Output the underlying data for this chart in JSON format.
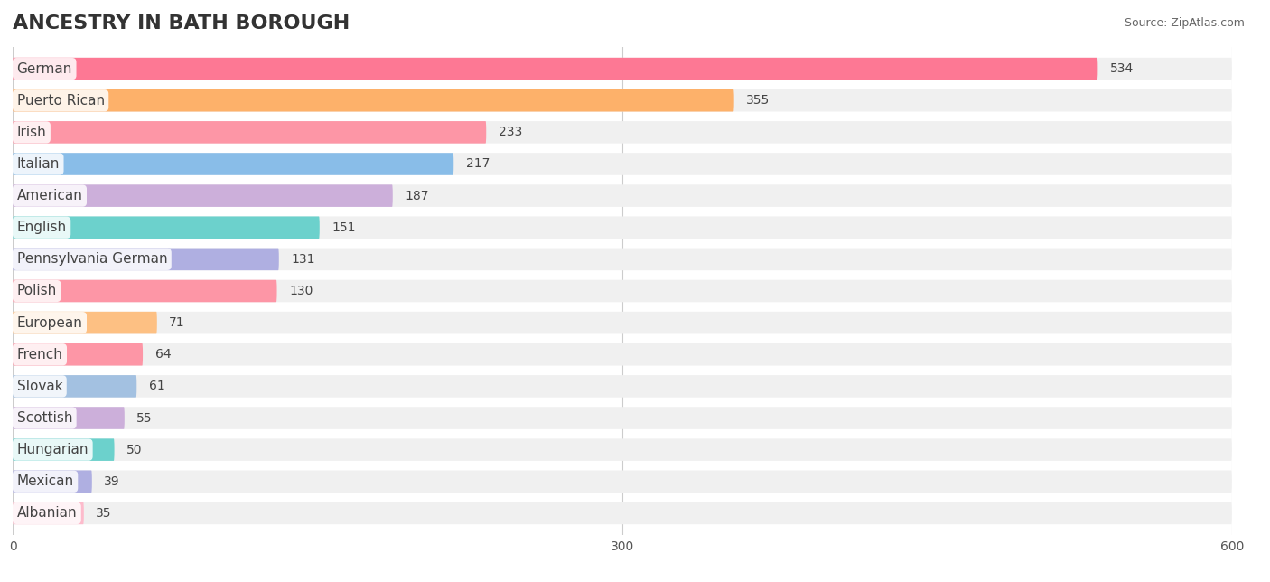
{
  "title": "ANCESTRY IN BATH BOROUGH",
  "source": "Source: ZipAtlas.com",
  "categories": [
    "German",
    "Puerto Rican",
    "Irish",
    "Italian",
    "American",
    "English",
    "Pennsylvania German",
    "Polish",
    "European",
    "French",
    "Slovak",
    "Scottish",
    "Hungarian",
    "Mexican",
    "Albanian"
  ],
  "values": [
    534,
    355,
    233,
    217,
    187,
    151,
    131,
    130,
    71,
    64,
    61,
    55,
    50,
    39,
    35
  ],
  "colors": [
    "#FF6B8A",
    "#FFAA5C",
    "#FF8C9E",
    "#7EB8E8",
    "#C8A8D8",
    "#5ECEC8",
    "#A8A8E0",
    "#FF8C9E",
    "#FFBB77",
    "#FF8C9E",
    "#9BBCE0",
    "#C8A8D8",
    "#5ECEC8",
    "#A8A8E0",
    "#FFB6C8"
  ],
  "bar_background": "#F0F0F0",
  "xlim": [
    0,
    600
  ],
  "xticks": [
    0,
    300,
    600
  ],
  "background_color": "#FFFFFF",
  "title_fontsize": 16,
  "value_fontsize": 10,
  "label_fontsize": 11
}
